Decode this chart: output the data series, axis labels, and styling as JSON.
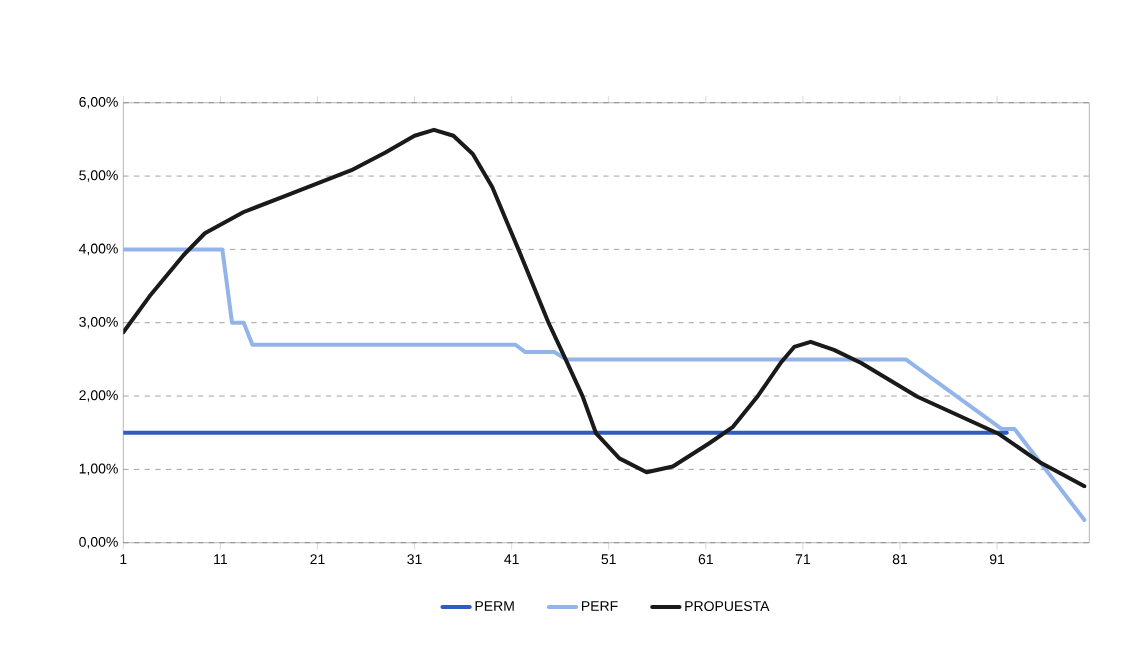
{
  "chart_data": {
    "type": "line",
    "xlim": [
      1,
      100.5
    ],
    "xticks": [
      1,
      11,
      21,
      31,
      41,
      51,
      61,
      71,
      81,
      91
    ],
    "ylim": [
      0,
      6
    ],
    "yticks": [
      {
        "value": 0,
        "label": "0,00%"
      },
      {
        "value": 1,
        "label": "1,00%"
      },
      {
        "value": 2,
        "label": "2,00%"
      },
      {
        "value": 3,
        "label": "3,00%"
      },
      {
        "value": 4,
        "label": "4,00%"
      },
      {
        "value": 5,
        "label": "5,00%"
      },
      {
        "value": 6,
        "label": "6,00%"
      }
    ],
    "grid": "y",
    "legend": "bottom",
    "marker": "none",
    "series": [
      {
        "name": "PERM",
        "color": "#2e5cbf",
        "x": [
          1,
          92
        ],
        "values": [
          1.5,
          1.5
        ]
      },
      {
        "name": "PERF",
        "color": "#93b4ea",
        "x": [
          1,
          11.2,
          12.2,
          13.4,
          14.3,
          41.4,
          42.4,
          45.4,
          46.6,
          81.6,
          91.5,
          92.8,
          100
        ],
        "values": [
          4.0,
          4.0,
          3.0,
          3.0,
          2.7,
          2.7,
          2.6,
          2.6,
          2.5,
          2.5,
          1.55,
          1.55,
          0.31
        ]
      },
      {
        "name": "PROPUESTA",
        "color": "#1a1a1a",
        "x": [
          1,
          3.7,
          7.2,
          9.4,
          13.4,
          17.5,
          21,
          24.5,
          28,
          31,
          33,
          35,
          37,
          39,
          41.7,
          44.8,
          46.6,
          48.3,
          49.7,
          52.1,
          54.9,
          57.6,
          61.4,
          63.8,
          66.3,
          68.7,
          70.1,
          71.8,
          74.2,
          77,
          82.8,
          91.1,
          95.5,
          100
        ],
        "values": [
          2.87,
          3.36,
          3.92,
          4.22,
          4.51,
          4.72,
          4.9,
          5.08,
          5.32,
          5.55,
          5.63,
          5.55,
          5.3,
          4.85,
          4.0,
          3.0,
          2.49,
          2.0,
          1.49,
          1.15,
          0.96,
          1.04,
          1.36,
          1.58,
          1.99,
          2.45,
          2.67,
          2.74,
          2.63,
          2.45,
          1.99,
          1.49,
          1.09,
          0.77
        ]
      }
    ]
  }
}
